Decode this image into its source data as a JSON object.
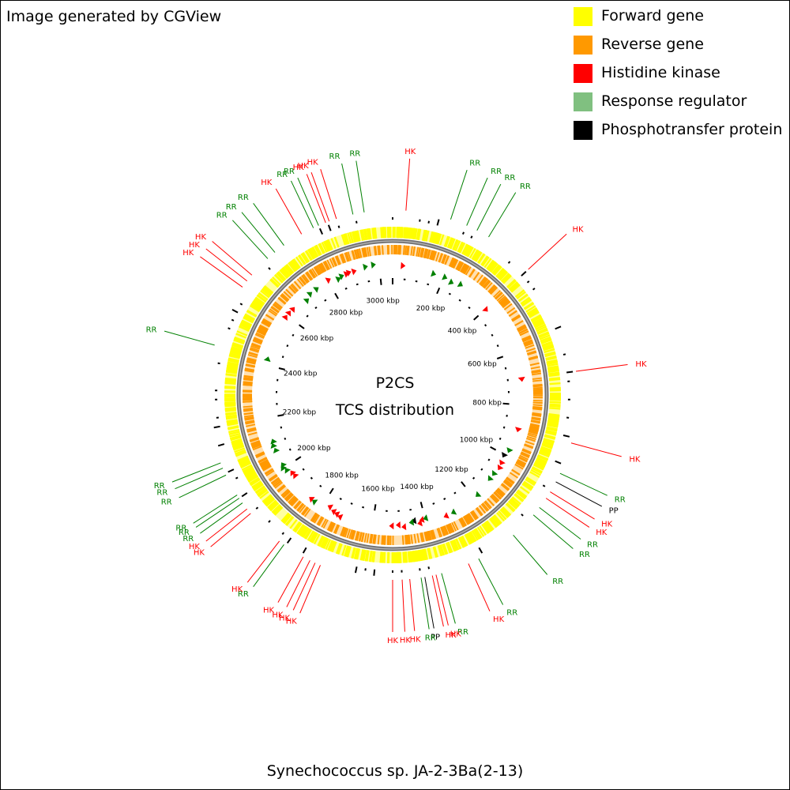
{
  "credit": "Image generated by CGView",
  "legend": [
    {
      "label": "Forward gene",
      "color": "#ffff00"
    },
    {
      "label": "Reverse gene",
      "color": "#ff9900"
    },
    {
      "label": "Histidine kinase",
      "color": "#ff0000"
    },
    {
      "label": "Response regulator",
      "color": "#80c080"
    },
    {
      "label": "Phosphotransfer protein",
      "color": "#000000"
    }
  ],
  "center_title": "P2CS",
  "center_subtitle": "TCS distribution",
  "organism": "Synechococcus sp. JA-2-3Ba(2-13)",
  "genome_kbp": 3050,
  "ruler": {
    "unit": "kbp",
    "labels": [
      "200 kbp",
      "400 kbp",
      "600 kbp",
      "800 kbp",
      "1000 kbp",
      "1200 kbp",
      "1400 kbp",
      "1600 kbp",
      "1800 kbp",
      "2000 kbp",
      "2200 kbp",
      "2400 kbp",
      "2600 kbp",
      "2800 kbp",
      "3000 kbp"
    ],
    "values": [
      200,
      400,
      600,
      800,
      1000,
      1200,
      1400,
      1600,
      1800,
      2000,
      2200,
      2400,
      2600,
      2800,
      3000
    ]
  },
  "colors": {
    "forward": "#ffff00",
    "reverse": "#ff9900",
    "hk": "#ff0000",
    "rr": "#008000",
    "pp": "#000000",
    "backbone": "#808080"
  },
  "features": [
    {
      "type": "HK",
      "kbp": 35
    },
    {
      "type": "RR",
      "kbp": 155
    },
    {
      "type": "RR",
      "kbp": 200
    },
    {
      "type": "RR",
      "kbp": 230
    },
    {
      "type": "RR",
      "kbp": 265
    },
    {
      "type": "HK",
      "kbp": 400
    },
    {
      "type": "HK",
      "kbp": 700
    },
    {
      "type": "HK",
      "kbp": 890
    },
    {
      "type": "RR",
      "kbp": 975
    },
    {
      "type": "PP",
      "kbp": 1000
    },
    {
      "type": "HK",
      "kbp": 1030
    },
    {
      "type": "HK",
      "kbp": 1050
    },
    {
      "type": "RR",
      "kbp": 1080
    },
    {
      "type": "RR",
      "kbp": 1105
    },
    {
      "type": "RR",
      "kbp": 1180
    },
    {
      "type": "RR",
      "kbp": 1290
    },
    {
      "type": "HK",
      "kbp": 1320
    },
    {
      "type": "RR",
      "kbp": 1395
    },
    {
      "type": "HK",
      "kbp": 1410
    },
    {
      "type": "HK",
      "kbp": 1420
    },
    {
      "type": "PP",
      "kbp": 1440
    },
    {
      "type": "RR",
      "kbp": 1450
    },
    {
      "type": "HK",
      "kbp": 1480
    },
    {
      "type": "HK",
      "kbp": 1500
    },
    {
      "type": "HK",
      "kbp": 1525
    },
    {
      "type": "HK",
      "kbp": 1720
    },
    {
      "type": "HK",
      "kbp": 1735
    },
    {
      "type": "HK",
      "kbp": 1750
    },
    {
      "type": "HK",
      "kbp": 1770
    },
    {
      "type": "RR",
      "kbp": 1830
    },
    {
      "type": "HK",
      "kbp": 1845
    },
    {
      "type": "HK",
      "kbp": 1950
    },
    {
      "type": "HK",
      "kbp": 1965
    },
    {
      "type": "RR",
      "kbp": 1985
    },
    {
      "type": "RR",
      "kbp": 2000
    },
    {
      "type": "RR",
      "kbp": 2010
    },
    {
      "type": "RR",
      "kbp": 2070
    },
    {
      "type": "RR",
      "kbp": 2090
    },
    {
      "type": "RR",
      "kbp": 2105
    },
    {
      "type": "RR",
      "kbp": 2420
    },
    {
      "type": "HK",
      "kbp": 2590
    },
    {
      "type": "HK",
      "kbp": 2610
    },
    {
      "type": "HK",
      "kbp": 2630
    },
    {
      "type": "RR",
      "kbp": 2690
    },
    {
      "type": "RR",
      "kbp": 2715
    },
    {
      "type": "RR",
      "kbp": 2745
    },
    {
      "type": "HK",
      "kbp": 2800
    },
    {
      "type": "RR",
      "kbp": 2835
    },
    {
      "type": "RR",
      "kbp": 2850
    },
    {
      "type": "HK",
      "kbp": 2870
    },
    {
      "type": "HK",
      "kbp": 2880
    },
    {
      "type": "HK",
      "kbp": 2900
    },
    {
      "type": "RR",
      "kbp": 2945
    },
    {
      "type": "RR",
      "kbp": 2975
    }
  ]
}
